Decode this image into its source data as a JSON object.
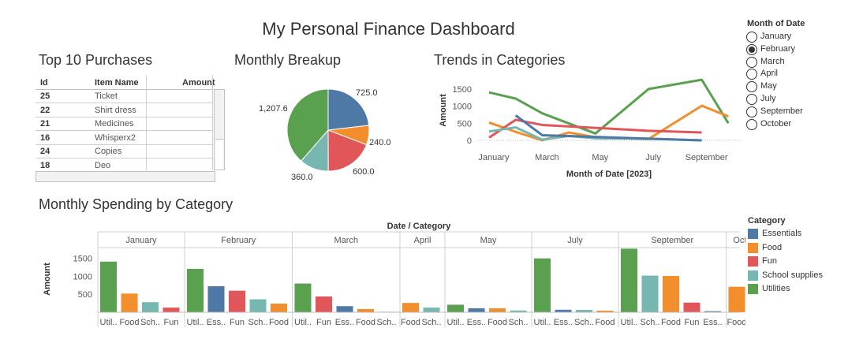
{
  "dashboard": {
    "title": "My Personal Finance Dashboard"
  },
  "colors": {
    "Essentials": "#4e79a7",
    "Food": "#f28e2b",
    "Fun": "#e15759",
    "School supplies": "#76b7b2",
    "Utilities": "#59a14f"
  },
  "purchases": {
    "title": "Top 10 Purchases",
    "headers": {
      "id": "Id",
      "name": "Item Name",
      "amount": "Amount"
    },
    "rows": [
      {
        "id": "25",
        "name": "Ticket"
      },
      {
        "id": "22",
        "name": "Shirt dress"
      },
      {
        "id": "21",
        "name": "Medicines"
      },
      {
        "id": "16",
        "name": "Whisperx2"
      },
      {
        "id": "24",
        "name": "Copies"
      },
      {
        "id": "18",
        "name": "Deo"
      }
    ]
  },
  "filter": {
    "title": "Month of Date",
    "options": [
      "January",
      "February",
      "March",
      "April",
      "May",
      "July",
      "September",
      "October"
    ],
    "selected": "February"
  },
  "legend": {
    "title": "Category",
    "items": [
      "Essentials",
      "Food",
      "Fun",
      "School supplies",
      "Utilities"
    ]
  },
  "chart_data": [
    {
      "id": "pie",
      "type": "pie",
      "title": "Monthly Breakup",
      "slices": [
        {
          "category": "Essentials",
          "value": 725.0,
          "label": "725.0"
        },
        {
          "category": "Food",
          "value": 240.0,
          "label": "240.0"
        },
        {
          "category": "Fun",
          "value": 600.0,
          "label": "600.0"
        },
        {
          "category": "School supplies",
          "value": 360.0,
          "label": "360.0"
        },
        {
          "category": "Utilities",
          "value": 1207.6,
          "label": "1,207.6"
        }
      ]
    },
    {
      "id": "trends",
      "type": "line",
      "title": "Trends in Categories",
      "xlabel": "Month of Date [2023]",
      "ylabel": "Amount",
      "x": [
        "2023-01",
        "2023-02",
        "2023-03",
        "2023-04",
        "2023-05",
        "2023-06",
        "2023-07",
        "2023-08",
        "2023-09",
        "2023-10"
      ],
      "xticks": [
        "January",
        "March",
        "May",
        "July",
        "September"
      ],
      "ylim": [
        0,
        1750
      ],
      "yticks": [
        0,
        500,
        1000,
        1500
      ],
      "series": [
        {
          "name": "Utilities",
          "points": [
            [
              "2023-01",
              1400
            ],
            [
              "2023-02",
              1220
            ],
            [
              "2023-03",
              790
            ],
            [
              "2023-05",
              200
            ],
            [
              "2023-07",
              1500
            ],
            [
              "2023-09",
              1770
            ],
            [
              "2023-10",
              500
            ]
          ]
        },
        {
          "name": "Food",
          "points": [
            [
              "2023-01",
              520
            ],
            [
              "2023-02",
              250
            ],
            [
              "2023-03",
              0
            ],
            [
              "2023-04",
              230
            ],
            [
              "2023-05",
              90
            ],
            [
              "2023-07",
              40
            ],
            [
              "2023-09",
              1010
            ],
            [
              "2023-10",
              700
            ]
          ]
        },
        {
          "name": "Fun",
          "points": [
            [
              "2023-01",
              80
            ],
            [
              "2023-02",
              600
            ],
            [
              "2023-03",
              450
            ],
            [
              "2023-07",
              280
            ],
            [
              "2023-09",
              230
            ]
          ]
        },
        {
          "name": "School supplies",
          "points": [
            [
              "2023-01",
              260
            ],
            [
              "2023-02",
              380
            ],
            [
              "2023-03",
              20
            ],
            [
              "2023-04",
              130
            ],
            [
              "2023-05",
              60
            ],
            [
              "2023-07",
              50
            ],
            [
              "2023-09",
              0
            ]
          ]
        },
        {
          "name": "Essentials",
          "points": [
            [
              "2023-02",
              730
            ],
            [
              "2023-03",
              150
            ],
            [
              "2023-05",
              100
            ],
            [
              "2023-07",
              50
            ],
            [
              "2023-09",
              0
            ]
          ]
        }
      ]
    },
    {
      "id": "monthly-bars",
      "type": "bar",
      "title": "Monthly Spending by Category",
      "header": "Date / Category",
      "ylabel": "Amount",
      "ylim": [
        0,
        1800
      ],
      "yticks": [
        500,
        1000,
        1500
      ],
      "panels": [
        {
          "month": "January",
          "bars": [
            {
              "label": "Util..",
              "category": "Utilities",
              "value": 1410
            },
            {
              "label": "Food",
              "category": "Food",
              "value": 520
            },
            {
              "label": "Sch..",
              "category": "School supplies",
              "value": 280
            },
            {
              "label": "Fun",
              "category": "Fun",
              "value": 130
            }
          ]
        },
        {
          "month": "February",
          "bars": [
            {
              "label": "Util..",
              "category": "Utilities",
              "value": 1207.6
            },
            {
              "label": "Ess..",
              "category": "Essentials",
              "value": 725
            },
            {
              "label": "Fun",
              "category": "Fun",
              "value": 600
            },
            {
              "label": "Sch..",
              "category": "School supplies",
              "value": 360
            },
            {
              "label": "Food",
              "category": "Food",
              "value": 240
            }
          ]
        },
        {
          "month": "March",
          "bars": [
            {
              "label": "Util..",
              "category": "Utilities",
              "value": 800
            },
            {
              "label": "Fun",
              "category": "Fun",
              "value": 440
            },
            {
              "label": "Ess..",
              "category": "Essentials",
              "value": 170
            },
            {
              "label": "Food",
              "category": "Food",
              "value": 90
            },
            {
              "label": "Sch..",
              "category": "School supplies",
              "value": 15
            }
          ]
        },
        {
          "month": "April",
          "bars": [
            {
              "label": "Food",
              "category": "Food",
              "value": 260
            },
            {
              "label": "Sch..",
              "category": "School supplies",
              "value": 130
            }
          ]
        },
        {
          "month": "May",
          "bars": [
            {
              "label": "Util..",
              "category": "Utilities",
              "value": 210
            },
            {
              "label": "Ess..",
              "category": "Essentials",
              "value": 110
            },
            {
              "label": "Food",
              "category": "Food",
              "value": 110
            },
            {
              "label": "Sch..",
              "category": "School supplies",
              "value": 50
            }
          ]
        },
        {
          "month": "July",
          "bars": [
            {
              "label": "Util..",
              "category": "Utilities",
              "value": 1500
            },
            {
              "label": "Ess..",
              "category": "Essentials",
              "value": 70
            },
            {
              "label": "Sch..",
              "category": "School supplies",
              "value": 65
            },
            {
              "label": "Food",
              "category": "Food",
              "value": 45
            }
          ]
        },
        {
          "month": "September",
          "bars": [
            {
              "label": "Util..",
              "category": "Utilities",
              "value": 1770
            },
            {
              "label": "Sch..",
              "category": "School supplies",
              "value": 1020
            },
            {
              "label": "Food",
              "category": "Food",
              "value": 1010
            },
            {
              "label": "Fun",
              "category": "Fun",
              "value": 270
            },
            {
              "label": "Ess..",
              "category": "Essentials",
              "value": 30
            }
          ]
        },
        {
          "month": "October",
          "bars": [
            {
              "label": "Food",
              "category": "Food",
              "value": 710
            },
            {
              "label": "Util..",
              "category": "Utilities",
              "value": 520
            }
          ]
        }
      ]
    }
  ]
}
